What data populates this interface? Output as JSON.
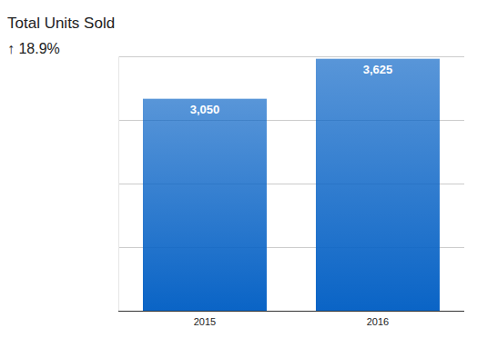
{
  "chart_data": {
    "type": "bar",
    "title": "Total Units Sold",
    "subtitle": "↑ 18.9%",
    "categories": [
      "2015",
      "2016"
    ],
    "values": [
      3050,
      3625
    ],
    "value_labels": [
      "3,050",
      "3,625"
    ],
    "color": "#0a64c6",
    "ylim": [
      0,
      3660
    ],
    "yticks": [
      0,
      915,
      1830,
      2745,
      3660
    ],
    "grid": true,
    "data_labels": true,
    "tick_labels": "x"
  }
}
